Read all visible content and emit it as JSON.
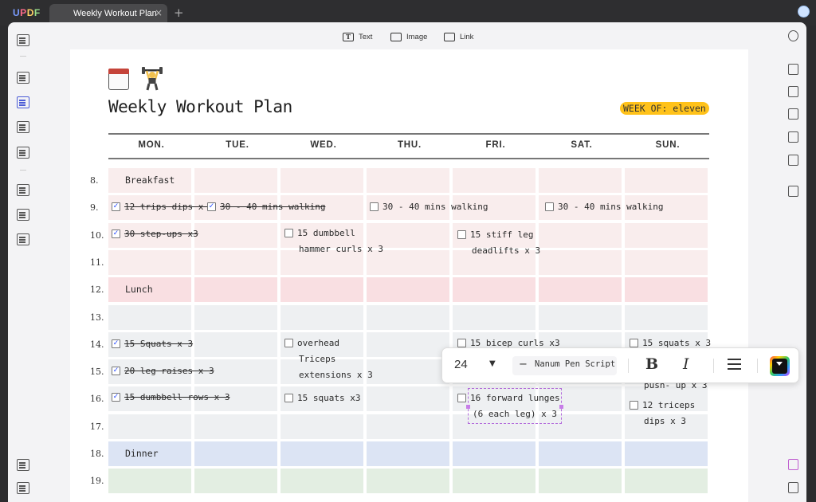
{
  "app": {
    "name": "UPDF",
    "logo": {
      "u": "U",
      "p": "P",
      "d": "D",
      "f": "F"
    }
  },
  "tab": {
    "title": "Weekly Workout Plan",
    "close": "×",
    "add": "+"
  },
  "toolbar": {
    "text_label": "Text",
    "image_label": "Image",
    "link_label": "Link"
  },
  "doc": {
    "title": "Weekly Workout Plan",
    "week": "WEEK OF: eleven",
    "days": [
      "MON.",
      "TUE.",
      "WED.",
      "THU.",
      "FRI.",
      "SAT.",
      "SUN."
    ],
    "rows": [
      {
        "num": "8.",
        "label": "Breakfast"
      },
      {
        "num": "9.",
        "label": ""
      },
      {
        "num": "10.",
        "label": ""
      },
      {
        "num": "11.",
        "label": ""
      },
      {
        "num": "12.",
        "label": "Lunch"
      },
      {
        "num": "13.",
        "label": ""
      },
      {
        "num": "14.",
        "label": ""
      },
      {
        "num": "15.",
        "label": ""
      },
      {
        "num": "16.",
        "label": ""
      },
      {
        "num": "17.",
        "label": ""
      },
      {
        "num": "18.",
        "label": "Dinner"
      },
      {
        "num": "19.",
        "label": ""
      }
    ],
    "tasks": {
      "mon9": "12 trips dips x 3",
      "tue9": "30 - 40 mins walking",
      "wed9": "30 - 40 mins walking",
      "sat9": "30 - 40 mins walking",
      "mon10": "30 step-ups x3",
      "wed10_1": "15 dumbbell",
      "wed10_2": "hammer curls x 3",
      "fri10_1": "15 stiff leg",
      "fri10_2": "deadlifts x 3",
      "mon14": "15 Squats x 3",
      "wed14_1": "overhead",
      "wed14_2": "Triceps",
      "wed14_3": "extensions x 3",
      "fri14": "15 bicep curls x3",
      "sun14": "15 squats x 3",
      "sun15": "push- up x 3",
      "mon15": "20 leg raises x 3",
      "mon16": "15 dumbbell rows x 3",
      "wed16": "15 squats x3",
      "fri16_1": "16 forward lunges",
      "fri16_2": "(6 each leg) x 3",
      "sun16_1": "12 triceps",
      "sun16_2": "dips x 3"
    },
    "check": "✓"
  },
  "format": {
    "font_size": "24",
    "font_size_arrow": "▼",
    "font_name": "Nanum Pen Script",
    "minus": "−",
    "bold": "B",
    "italic": "I"
  },
  "colors": {
    "breakfast_row": "#f9eded",
    "lunch_row": "#f9dfe2",
    "grey_row": "#eef0f2",
    "dinner_row": "#dce4f4",
    "green_row": "#e3eee2",
    "accent": "#4b5bd6",
    "week_badge": "#ffc21a"
  }
}
